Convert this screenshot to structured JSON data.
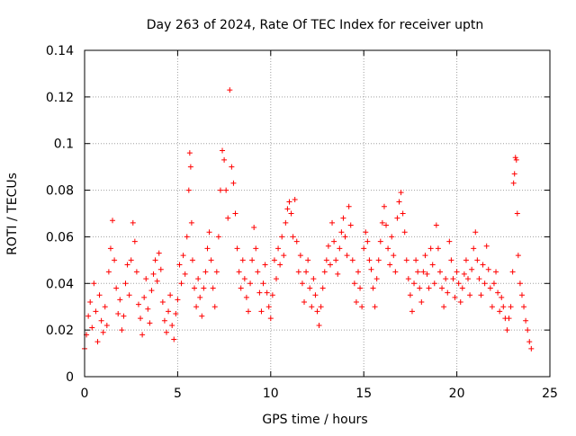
{
  "chart_data": {
    "type": "scatter",
    "title": "Day 263 of 2024, Rate Of TEC Index for receiver uptn",
    "xlabel": "GPS time / hours",
    "ylabel": "ROTI / TECUs",
    "xlim": [
      0,
      25
    ],
    "ylim": [
      0,
      0.14
    ],
    "x_ticks": [
      0,
      5,
      10,
      15,
      20,
      25
    ],
    "x_tick_labels": [
      "0",
      "5",
      "10",
      "15",
      "20",
      "25"
    ],
    "y_ticks": [
      0,
      0.02,
      0.04,
      0.06,
      0.08,
      0.1,
      0.12,
      0.14
    ],
    "y_tick_labels": [
      "0",
      "0.02",
      "0.04",
      "0.06",
      "0.08",
      "0.1",
      "0.12",
      "0.14"
    ],
    "grid": true,
    "marker": "plus",
    "color": "#ff0000",
    "points": [
      [
        0.0,
        0.012
      ],
      [
        0.1,
        0.018
      ],
      [
        0.2,
        0.026
      ],
      [
        0.3,
        0.032
      ],
      [
        0.4,
        0.021
      ],
      [
        0.5,
        0.04
      ],
      [
        0.6,
        0.028
      ],
      [
        0.7,
        0.015
      ],
      [
        0.8,
        0.035
      ],
      [
        0.9,
        0.024
      ],
      [
        1.0,
        0.019
      ],
      [
        1.1,
        0.03
      ],
      [
        1.2,
        0.022
      ],
      [
        1.3,
        0.045
      ],
      [
        1.4,
        0.055
      ],
      [
        1.5,
        0.067
      ],
      [
        1.6,
        0.05
      ],
      [
        1.7,
        0.038
      ],
      [
        1.8,
        0.027
      ],
      [
        1.9,
        0.033
      ],
      [
        2.0,
        0.02
      ],
      [
        2.1,
        0.026
      ],
      [
        2.2,
        0.04
      ],
      [
        2.3,
        0.048
      ],
      [
        2.4,
        0.035
      ],
      [
        2.5,
        0.05
      ],
      [
        2.6,
        0.066
      ],
      [
        2.7,
        0.058
      ],
      [
        2.8,
        0.045
      ],
      [
        2.9,
        0.031
      ],
      [
        3.0,
        0.025
      ],
      [
        3.1,
        0.018
      ],
      [
        3.2,
        0.034
      ],
      [
        3.3,
        0.042
      ],
      [
        3.4,
        0.029
      ],
      [
        3.5,
        0.023
      ],
      [
        3.6,
        0.037
      ],
      [
        3.7,
        0.044
      ],
      [
        3.8,
        0.05
      ],
      [
        3.9,
        0.041
      ],
      [
        4.0,
        0.053
      ],
      [
        4.1,
        0.046
      ],
      [
        4.2,
        0.032
      ],
      [
        4.3,
        0.024
      ],
      [
        4.4,
        0.019
      ],
      [
        4.5,
        0.028
      ],
      [
        4.6,
        0.035
      ],
      [
        4.7,
        0.022
      ],
      [
        4.8,
        0.016
      ],
      [
        4.9,
        0.027
      ],
      [
        5.0,
        0.033
      ],
      [
        5.1,
        0.048
      ],
      [
        5.2,
        0.04
      ],
      [
        5.3,
        0.052
      ],
      [
        5.4,
        0.044
      ],
      [
        5.5,
        0.06
      ],
      [
        5.6,
        0.08
      ],
      [
        5.65,
        0.096
      ],
      [
        5.7,
        0.09
      ],
      [
        5.75,
        0.066
      ],
      [
        5.8,
        0.05
      ],
      [
        5.9,
        0.038
      ],
      [
        6.0,
        0.03
      ],
      [
        6.1,
        0.042
      ],
      [
        6.2,
        0.034
      ],
      [
        6.3,
        0.026
      ],
      [
        6.4,
        0.038
      ],
      [
        6.5,
        0.045
      ],
      [
        6.6,
        0.055
      ],
      [
        6.7,
        0.062
      ],
      [
        6.8,
        0.05
      ],
      [
        6.9,
        0.038
      ],
      [
        7.0,
        0.03
      ],
      [
        7.1,
        0.045
      ],
      [
        7.2,
        0.06
      ],
      [
        7.3,
        0.08
      ],
      [
        7.4,
        0.097
      ],
      [
        7.5,
        0.093
      ],
      [
        7.6,
        0.08
      ],
      [
        7.7,
        0.068
      ],
      [
        7.8,
        0.123
      ],
      [
        7.9,
        0.09
      ],
      [
        8.0,
        0.083
      ],
      [
        8.1,
        0.07
      ],
      [
        8.2,
        0.055
      ],
      [
        8.3,
        0.045
      ],
      [
        8.4,
        0.038
      ],
      [
        8.5,
        0.05
      ],
      [
        8.6,
        0.042
      ],
      [
        8.7,
        0.034
      ],
      [
        8.8,
        0.028
      ],
      [
        8.9,
        0.04
      ],
      [
        9.0,
        0.05
      ],
      [
        9.1,
        0.064
      ],
      [
        9.2,
        0.055
      ],
      [
        9.3,
        0.045
      ],
      [
        9.4,
        0.036
      ],
      [
        9.5,
        0.028
      ],
      [
        9.6,
        0.04
      ],
      [
        9.7,
        0.048
      ],
      [
        9.8,
        0.036
      ],
      [
        9.9,
        0.03
      ],
      [
        10.0,
        0.025
      ],
      [
        10.1,
        0.035
      ],
      [
        10.2,
        0.05
      ],
      [
        10.3,
        0.042
      ],
      [
        10.4,
        0.055
      ],
      [
        10.5,
        0.048
      ],
      [
        10.6,
        0.06
      ],
      [
        10.7,
        0.052
      ],
      [
        10.8,
        0.066
      ],
      [
        10.9,
        0.072
      ],
      [
        11.0,
        0.075
      ],
      [
        11.1,
        0.07
      ],
      [
        11.2,
        0.06
      ],
      [
        11.3,
        0.076
      ],
      [
        11.4,
        0.058
      ],
      [
        11.5,
        0.045
      ],
      [
        11.6,
        0.052
      ],
      [
        11.7,
        0.04
      ],
      [
        11.8,
        0.032
      ],
      [
        11.9,
        0.045
      ],
      [
        12.0,
        0.05
      ],
      [
        12.1,
        0.038
      ],
      [
        12.2,
        0.03
      ],
      [
        12.3,
        0.042
      ],
      [
        12.4,
        0.035
      ],
      [
        12.5,
        0.028
      ],
      [
        12.6,
        0.022
      ],
      [
        12.7,
        0.03
      ],
      [
        12.8,
        0.038
      ],
      [
        12.9,
        0.045
      ],
      [
        13.0,
        0.05
      ],
      [
        13.1,
        0.056
      ],
      [
        13.2,
        0.048
      ],
      [
        13.3,
        0.066
      ],
      [
        13.4,
        0.058
      ],
      [
        13.5,
        0.05
      ],
      [
        13.6,
        0.044
      ],
      [
        13.7,
        0.055
      ],
      [
        13.8,
        0.062
      ],
      [
        13.9,
        0.068
      ],
      [
        14.0,
        0.06
      ],
      [
        14.1,
        0.052
      ],
      [
        14.2,
        0.073
      ],
      [
        14.3,
        0.065
      ],
      [
        14.4,
        0.05
      ],
      [
        14.5,
        0.04
      ],
      [
        14.6,
        0.032
      ],
      [
        14.7,
        0.045
      ],
      [
        14.8,
        0.038
      ],
      [
        14.9,
        0.03
      ],
      [
        15.0,
        0.055
      ],
      [
        15.1,
        0.062
      ],
      [
        15.2,
        0.058
      ],
      [
        15.3,
        0.05
      ],
      [
        15.4,
        0.046
      ],
      [
        15.5,
        0.038
      ],
      [
        15.6,
        0.03
      ],
      [
        15.7,
        0.042
      ],
      [
        15.8,
        0.05
      ],
      [
        15.9,
        0.058
      ],
      [
        16.0,
        0.066
      ],
      [
        16.1,
        0.073
      ],
      [
        16.2,
        0.065
      ],
      [
        16.3,
        0.055
      ],
      [
        16.4,
        0.048
      ],
      [
        16.5,
        0.06
      ],
      [
        16.6,
        0.052
      ],
      [
        16.7,
        0.045
      ],
      [
        16.8,
        0.068
      ],
      [
        16.9,
        0.075
      ],
      [
        17.0,
        0.079
      ],
      [
        17.1,
        0.07
      ],
      [
        17.2,
        0.062
      ],
      [
        17.3,
        0.05
      ],
      [
        17.4,
        0.042
      ],
      [
        17.5,
        0.035
      ],
      [
        17.6,
        0.028
      ],
      [
        17.7,
        0.04
      ],
      [
        17.8,
        0.05
      ],
      [
        17.9,
        0.045
      ],
      [
        18.0,
        0.038
      ],
      [
        18.1,
        0.032
      ],
      [
        18.2,
        0.045
      ],
      [
        18.3,
        0.052
      ],
      [
        18.4,
        0.044
      ],
      [
        18.5,
        0.038
      ],
      [
        18.6,
        0.055
      ],
      [
        18.7,
        0.048
      ],
      [
        18.8,
        0.04
      ],
      [
        18.9,
        0.065
      ],
      [
        19.0,
        0.055
      ],
      [
        19.1,
        0.045
      ],
      [
        19.2,
        0.038
      ],
      [
        19.3,
        0.03
      ],
      [
        19.4,
        0.042
      ],
      [
        19.5,
        0.036
      ],
      [
        19.6,
        0.058
      ],
      [
        19.7,
        0.05
      ],
      [
        19.8,
        0.042
      ],
      [
        19.9,
        0.034
      ],
      [
        20.0,
        0.045
      ],
      [
        20.1,
        0.04
      ],
      [
        20.2,
        0.032
      ],
      [
        20.3,
        0.038
      ],
      [
        20.4,
        0.044
      ],
      [
        20.5,
        0.05
      ],
      [
        20.6,
        0.042
      ],
      [
        20.7,
        0.035
      ],
      [
        20.8,
        0.046
      ],
      [
        20.9,
        0.055
      ],
      [
        21.0,
        0.062
      ],
      [
        21.1,
        0.05
      ],
      [
        21.2,
        0.042
      ],
      [
        21.3,
        0.035
      ],
      [
        21.4,
        0.048
      ],
      [
        21.5,
        0.04
      ],
      [
        21.6,
        0.056
      ],
      [
        21.7,
        0.046
      ],
      [
        21.8,
        0.038
      ],
      [
        21.9,
        0.03
      ],
      [
        22.0,
        0.04
      ],
      [
        22.1,
        0.045
      ],
      [
        22.2,
        0.036
      ],
      [
        22.3,
        0.028
      ],
      [
        22.4,
        0.034
      ],
      [
        22.5,
        0.03
      ],
      [
        22.6,
        0.025
      ],
      [
        22.7,
        0.02
      ],
      [
        22.8,
        0.025
      ],
      [
        22.9,
        0.03
      ],
      [
        23.0,
        0.045
      ],
      [
        23.05,
        0.083
      ],
      [
        23.1,
        0.087
      ],
      [
        23.15,
        0.094
      ],
      [
        23.2,
        0.093
      ],
      [
        23.25,
        0.07
      ],
      [
        23.3,
        0.052
      ],
      [
        23.4,
        0.04
      ],
      [
        23.5,
        0.035
      ],
      [
        23.6,
        0.03
      ],
      [
        23.7,
        0.024
      ],
      [
        23.8,
        0.02
      ],
      [
        23.9,
        0.015
      ],
      [
        24.0,
        0.012
      ]
    ]
  }
}
